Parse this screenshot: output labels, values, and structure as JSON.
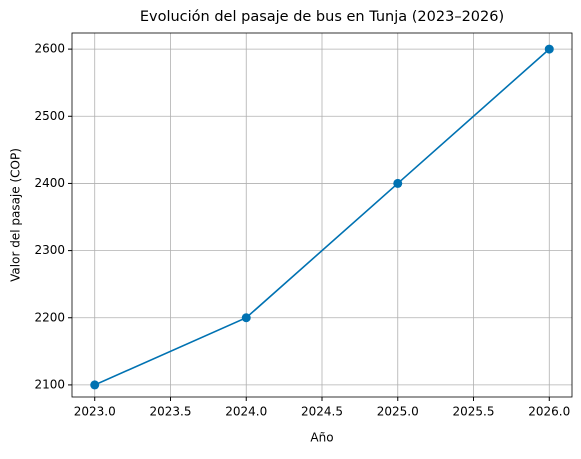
{
  "chart_data": {
    "type": "line",
    "title": "Evolución del pasaje de bus en Tunja (2023–2026)",
    "xlabel": "Año",
    "ylabel": "Valor del pasaje (COP)",
    "x": [
      2023,
      2024,
      2025,
      2026
    ],
    "series": [
      {
        "values": [
          2100,
          2200,
          2400,
          2600
        ],
        "color": "#0072b2",
        "marker": "o"
      }
    ],
    "xlim": [
      2022.85,
      2026.15
    ],
    "xticks": [
      {
        "value": 2023,
        "label": "2023.0"
      },
      {
        "value": 2023.5,
        "label": "2023.5"
      },
      {
        "value": 2024,
        "label": "2024.0"
      },
      {
        "value": 2024.5,
        "label": "2024.5"
      },
      {
        "value": 2025,
        "label": "2025.0"
      },
      {
        "value": 2025.5,
        "label": "2025.5"
      },
      {
        "value": 2026,
        "label": "2026.0"
      }
    ],
    "ylim": [
      2082,
      2624
    ],
    "yticks": [
      2100,
      2200,
      2300,
      2400,
      2500,
      2600
    ],
    "grid": true
  }
}
